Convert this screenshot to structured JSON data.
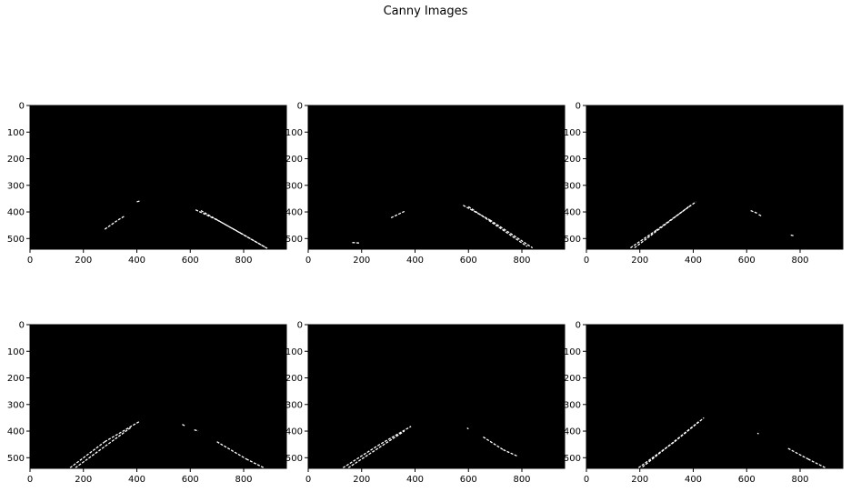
{
  "figure": {
    "title": "Canny Images"
  },
  "chart_data": {
    "type": "image-grid",
    "title": "Canny Images",
    "rows": 2,
    "cols": 3,
    "background_color": "#000000",
    "edge_color": "#ffffff",
    "xlim": [
      0,
      960
    ],
    "ylim": [
      540,
      0
    ],
    "xticks": [
      0,
      200,
      400,
      600,
      800
    ],
    "yticks": [
      0,
      100,
      200,
      300,
      400,
      500
    ],
    "panels": [
      {
        "edges": [
          [
            [
              280,
              465
            ],
            [
              330,
              430
            ]
          ],
          [
            [
              330,
              430
            ],
            [
              355,
              415
            ]
          ],
          [
            [
              400,
              362
            ],
            [
              415,
              358
            ]
          ],
          [
            [
              620,
              392
            ],
            [
              700,
              430
            ]
          ],
          [
            [
              700,
              430
            ],
            [
              790,
              480
            ]
          ],
          [
            [
              790,
              480
            ],
            [
              885,
              535
            ]
          ],
          [
            [
              640,
              395
            ],
            [
              890,
              538
            ]
          ]
        ]
      },
      {
        "edges": [
          [
            [
              165,
              515
            ],
            [
              195,
              517
            ]
          ],
          [
            [
              310,
              422
            ],
            [
              360,
              398
            ]
          ],
          [
            [
              580,
              375
            ],
            [
              680,
              430
            ]
          ],
          [
            [
              680,
              430
            ],
            [
              840,
              535
            ]
          ],
          [
            [
              600,
              380
            ],
            [
              820,
              530
            ]
          ]
        ]
      },
      {
        "edges": [
          [
            [
              165,
              535
            ],
            [
              260,
              470
            ]
          ],
          [
            [
              260,
              470
            ],
            [
              410,
              362
            ]
          ],
          [
            [
              180,
              535
            ],
            [
              390,
              375
            ]
          ],
          [
            [
              615,
              395
            ],
            [
              640,
              405
            ]
          ],
          [
            [
              645,
              410
            ],
            [
              655,
              415
            ]
          ],
          [
            [
              765,
              487
            ],
            [
              780,
              490
            ]
          ]
        ]
      },
      {
        "edges": [
          [
            [
              150,
              538
            ],
            [
              280,
              440
            ]
          ],
          [
            [
              280,
              440
            ],
            [
              408,
              365
            ]
          ],
          [
            [
              170,
              538
            ],
            [
              380,
              385
            ]
          ],
          [
            [
              570,
              375
            ],
            [
              580,
              380
            ]
          ],
          [
            [
              615,
              395
            ],
            [
              630,
              400
            ]
          ],
          [
            [
              700,
              440
            ],
            [
              810,
              505
            ]
          ],
          [
            [
              810,
              505
            ],
            [
              880,
              540
            ]
          ]
        ]
      },
      {
        "edges": [
          [
            [
              130,
              538
            ],
            [
              260,
              455
            ]
          ],
          [
            [
              260,
              455
            ],
            [
              385,
              382
            ]
          ],
          [
            [
              150,
              538
            ],
            [
              360,
              400
            ]
          ],
          [
            [
              595,
              388
            ],
            [
              600,
              392
            ]
          ],
          [
            [
              655,
              422
            ],
            [
              730,
              470
            ]
          ],
          [
            [
              730,
              470
            ],
            [
              785,
              495
            ]
          ]
        ]
      },
      {
        "edges": [
          [
            [
              195,
              538
            ],
            [
              330,
              440
            ]
          ],
          [
            [
              330,
              440
            ],
            [
              440,
              350
            ]
          ],
          [
            [
              210,
              535
            ],
            [
              420,
              365
            ]
          ],
          [
            [
              640,
              408
            ],
            [
              645,
              410
            ]
          ],
          [
            [
              755,
              465
            ],
            [
              830,
              505
            ]
          ],
          [
            [
              830,
              505
            ],
            [
              895,
              538
            ]
          ]
        ]
      }
    ]
  }
}
